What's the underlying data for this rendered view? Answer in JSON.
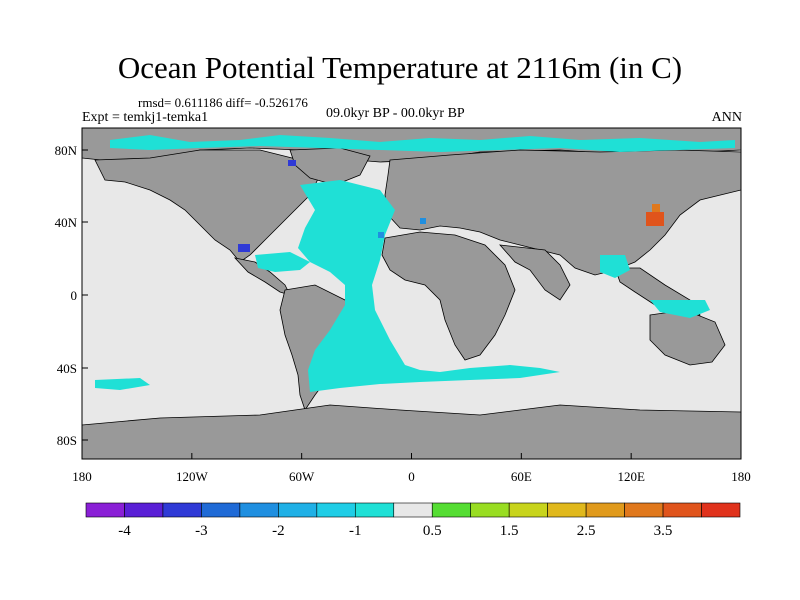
{
  "title": "Ocean Potential Temperature at 2116m (in C)",
  "stats": "rmsd= 0.611186 diff= -0.526176",
  "experiment": "Expt = temkj1-temka1",
  "period": "09.0kyr BP - 00.0kyr BP",
  "season": "ANN",
  "map": {
    "colors": {
      "land": "#999999",
      "ocean_near_zero": "#e8e8e8",
      "coast_line": "#000000"
    },
    "lon_ticks": [
      "180",
      "120W",
      "60W",
      "0",
      "60E",
      "120E",
      "180"
    ],
    "lat_ticks": [
      "80N",
      "40N",
      "0",
      "40S",
      "80S"
    ]
  },
  "colorbar": {
    "colors": [
      "#8a1fd6",
      "#5a1fd6",
      "#2f3ad6",
      "#1f6ad6",
      "#1f8fe0",
      "#1fb0e6",
      "#1fcde6",
      "#1fe0d6",
      "#e8e8e8",
      "#55dd33",
      "#99dd22",
      "#c8d41c",
      "#e0b81c",
      "#e09a1c",
      "#e0781c",
      "#e0541c",
      "#e0321c"
    ],
    "labels": [
      "-4",
      "-3",
      "-2",
      "-1",
      "0.5",
      "1.5",
      "2.5",
      "3.5"
    ]
  }
}
